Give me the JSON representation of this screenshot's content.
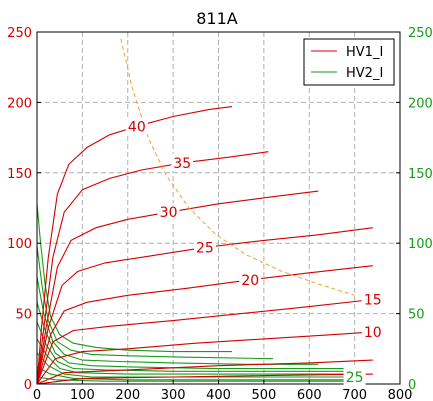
{
  "chart_data": {
    "type": "line",
    "title": "811A",
    "xlim": [
      0,
      800
    ],
    "ylim_left": [
      0,
      250
    ],
    "ylim_right": [
      0,
      250
    ],
    "x_ticks": [
      "0",
      "100",
      "200",
      "300",
      "400",
      "500",
      "600",
      "700",
      "800"
    ],
    "y_ticks_left": [
      "0",
      "50",
      "100",
      "150",
      "200",
      "250"
    ],
    "y_ticks_right": [
      "0",
      "50",
      "100",
      "150",
      "200",
      "250"
    ],
    "grid": true,
    "legend_position": "top-right",
    "legend": [
      {
        "label": "HV1_I",
        "color": "#d40000"
      },
      {
        "label": "HV2_I",
        "color": "#1a9a1a"
      }
    ],
    "hv1_series": [
      {
        "label": "40",
        "points": [
          [
            0,
            0
          ],
          [
            10,
            40
          ],
          [
            25,
            90
          ],
          [
            45,
            135
          ],
          [
            70,
            156
          ],
          [
            110,
            168
          ],
          [
            160,
            177
          ],
          [
            220,
            183
          ],
          [
            300,
            190
          ],
          [
            380,
            195
          ],
          [
            430,
            197
          ]
        ]
      },
      {
        "label": "35",
        "points": [
          [
            0,
            0
          ],
          [
            15,
            40
          ],
          [
            35,
            90
          ],
          [
            60,
            122
          ],
          [
            100,
            138
          ],
          [
            160,
            146
          ],
          [
            230,
            152
          ],
          [
            320,
            157
          ],
          [
            420,
            161
          ],
          [
            510,
            165
          ]
        ]
      },
      {
        "label": "30",
        "points": [
          [
            0,
            0
          ],
          [
            20,
            40
          ],
          [
            45,
            83
          ],
          [
            75,
            102
          ],
          [
            130,
            111
          ],
          [
            200,
            117
          ],
          [
            290,
            122
          ],
          [
            400,
            128
          ],
          [
            520,
            133
          ],
          [
            620,
            137
          ]
        ]
      },
      {
        "label": "25",
        "points": [
          [
            0,
            0
          ],
          [
            25,
            40
          ],
          [
            55,
            70
          ],
          [
            90,
            80
          ],
          [
            150,
            86
          ],
          [
            250,
            91
          ],
          [
            370,
            97
          ],
          [
            500,
            102
          ],
          [
            620,
            106
          ],
          [
            740,
            111
          ]
        ]
      },
      {
        "label": "20",
        "points": [
          [
            0,
            0
          ],
          [
            30,
            35
          ],
          [
            60,
            52
          ],
          [
            110,
            58
          ],
          [
            200,
            63
          ],
          [
            330,
            68
          ],
          [
            470,
            74
          ],
          [
            600,
            79
          ],
          [
            740,
            84
          ]
        ]
      },
      {
        "label": "15",
        "points": [
          [
            0,
            0
          ],
          [
            35,
            30
          ],
          [
            80,
            38
          ],
          [
            160,
            41
          ],
          [
            300,
            45
          ],
          [
            450,
            50
          ],
          [
            600,
            55
          ],
          [
            740,
            60
          ]
        ]
      },
      {
        "label": "10",
        "points": [
          [
            0,
            0
          ],
          [
            40,
            18
          ],
          [
            100,
            23
          ],
          [
            200,
            25
          ],
          [
            350,
            29
          ],
          [
            500,
            32
          ],
          [
            650,
            35
          ],
          [
            740,
            37
          ]
        ]
      },
      {
        "label": "",
        "points": [
          [
            0,
            0
          ],
          [
            60,
            8
          ],
          [
            200,
            10
          ],
          [
            400,
            13
          ],
          [
            600,
            15
          ],
          [
            740,
            17
          ]
        ]
      },
      {
        "label": "",
        "points": [
          [
            0,
            0
          ],
          [
            100,
            4
          ],
          [
            300,
            5
          ],
          [
            500,
            6
          ],
          [
            740,
            7
          ]
        ]
      }
    ],
    "hv2_series": [
      {
        "label": "",
        "points": [
          [
            0,
            128
          ],
          [
            8,
            100
          ],
          [
            18,
            70
          ],
          [
            30,
            48
          ],
          [
            50,
            35
          ],
          [
            80,
            29
          ],
          [
            130,
            26
          ],
          [
            200,
            24
          ],
          [
            300,
            23
          ],
          [
            430,
            23
          ]
        ]
      },
      {
        "label": "",
        "points": [
          [
            0,
            98
          ],
          [
            12,
            68
          ],
          [
            25,
            45
          ],
          [
            45,
            30
          ],
          [
            75,
            24
          ],
          [
            120,
            21
          ],
          [
            200,
            20
          ],
          [
            330,
            19
          ],
          [
            520,
            18
          ]
        ]
      },
      {
        "label": "",
        "points": [
          [
            0,
            76
          ],
          [
            15,
            50
          ],
          [
            35,
            30
          ],
          [
            60,
            21
          ],
          [
            100,
            17
          ],
          [
            180,
            16
          ],
          [
            300,
            15
          ],
          [
            460,
            14
          ],
          [
            620,
            14
          ]
        ]
      },
      {
        "label": "",
        "points": [
          [
            0,
            58
          ],
          [
            18,
            38
          ],
          [
            40,
            22
          ],
          [
            70,
            15
          ],
          [
            120,
            13
          ],
          [
            220,
            12
          ],
          [
            380,
            11
          ],
          [
            560,
            11
          ],
          [
            700,
            11
          ]
        ]
      },
      {
        "label": "",
        "points": [
          [
            0,
            44
          ],
          [
            20,
            28
          ],
          [
            45,
            16
          ],
          [
            80,
            11
          ],
          [
            150,
            10
          ],
          [
            300,
            9
          ],
          [
            500,
            9
          ],
          [
            700,
            9
          ]
        ]
      },
      {
        "label": "",
        "points": [
          [
            0,
            32
          ],
          [
            22,
            20
          ],
          [
            50,
            11
          ],
          [
            90,
            8
          ],
          [
            200,
            7
          ],
          [
            400,
            7
          ],
          [
            600,
            7
          ],
          [
            700,
            7
          ]
        ]
      },
      {
        "label": "25",
        "points": [
          [
            0,
            22
          ],
          [
            25,
            13
          ],
          [
            60,
            7
          ],
          [
            120,
            5
          ],
          [
            300,
            5
          ],
          [
            500,
            5
          ],
          [
            700,
            5
          ]
        ]
      },
      {
        "label": "",
        "points": [
          [
            0,
            12
          ],
          [
            30,
            7
          ],
          [
            80,
            4
          ],
          [
            200,
            3
          ],
          [
            450,
            3
          ],
          [
            700,
            3
          ]
        ]
      },
      {
        "label": "",
        "points": [
          [
            0,
            5
          ],
          [
            40,
            3
          ],
          [
            150,
            2
          ],
          [
            400,
            2
          ],
          [
            720,
            2
          ]
        ]
      }
    ],
    "limit_curve": {
      "color": "#f0a030",
      "points": [
        [
          185,
          245
        ],
        [
          210,
          210
        ],
        [
          245,
          175
        ],
        [
          285,
          148
        ],
        [
          335,
          125
        ],
        [
          395,
          106
        ],
        [
          460,
          92
        ],
        [
          540,
          80
        ],
        [
          620,
          71
        ],
        [
          700,
          63
        ]
      ]
    }
  }
}
